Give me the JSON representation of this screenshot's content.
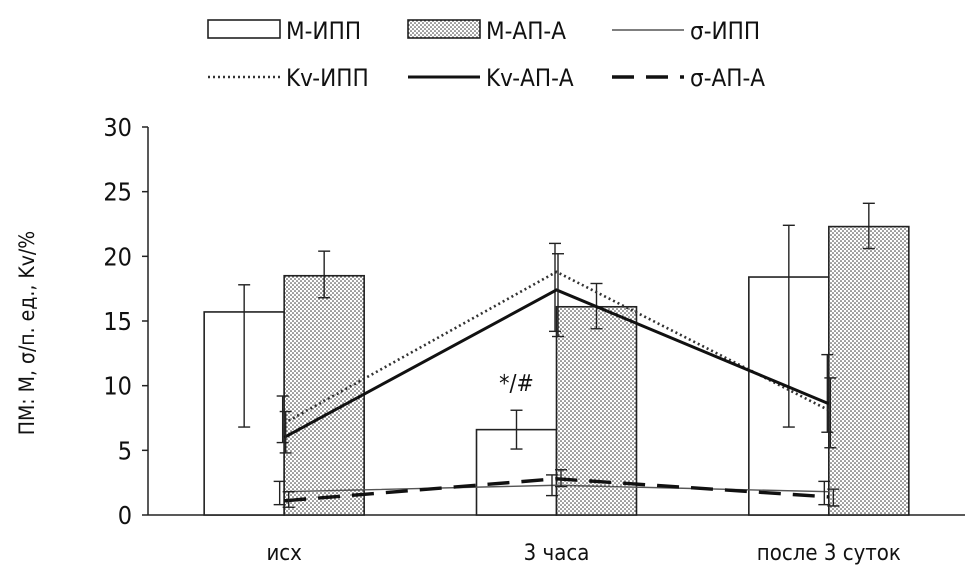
{
  "chart_data": {
    "type": "bar",
    "categories": [
      "исх",
      "3 часа",
      "после 3 суток"
    ],
    "ylabel": "ПМ: М, σ/п. ед., Kv/%",
    "ylim": [
      0,
      30
    ],
    "yticks": [
      0,
      5,
      10,
      15,
      20,
      25,
      30
    ],
    "legend_position": "top",
    "grid": false,
    "bar_series": [
      {
        "name": "М-ИПП",
        "values": [
          15.7,
          6.6,
          18.4
        ],
        "err_low": [
          6.8,
          5.1,
          6.8
        ],
        "err_high": [
          17.8,
          8.1,
          22.4
        ],
        "fill": "white"
      },
      {
        "name": "М-АП-А",
        "values": [
          18.5,
          16.1,
          22.3
        ],
        "err_low": [
          16.8,
          14.4,
          20.6
        ],
        "err_high": [
          20.4,
          17.9,
          24.1
        ],
        "fill": "dotted"
      }
    ],
    "line_series": [
      {
        "name": "σ-ИПП",
        "values": [
          1.8,
          2.3,
          1.8
        ],
        "style": "thin",
        "err_low": [
          0.8,
          1.5,
          0.8
        ],
        "err_high": [
          2.6,
          3.1,
          2.6
        ]
      },
      {
        "name": "Kv-ИПП",
        "values": [
          7.1,
          18.8,
          8.1
        ],
        "style": "dotted",
        "err_low": [
          5.6,
          14.2,
          6.4
        ],
        "err_high": [
          9.2,
          21.0,
          12.4
        ]
      },
      {
        "name": "Kv-АП-А",
        "values": [
          6.0,
          17.4,
          8.6
        ],
        "style": "thick",
        "err_low": [
          4.8,
          13.8,
          5.2
        ],
        "err_high": [
          8.0,
          20.2,
          10.6
        ]
      },
      {
        "name": "σ-АП-А",
        "values": [
          1.1,
          2.8,
          1.4
        ],
        "style": "dashed",
        "err_low": [
          0.6,
          2.2,
          0.7
        ],
        "err_high": [
          1.8,
          3.5,
          2.0
        ]
      }
    ],
    "annotations": [
      {
        "text": "*/#",
        "category_index": 1,
        "y": 9.6
      }
    ]
  }
}
